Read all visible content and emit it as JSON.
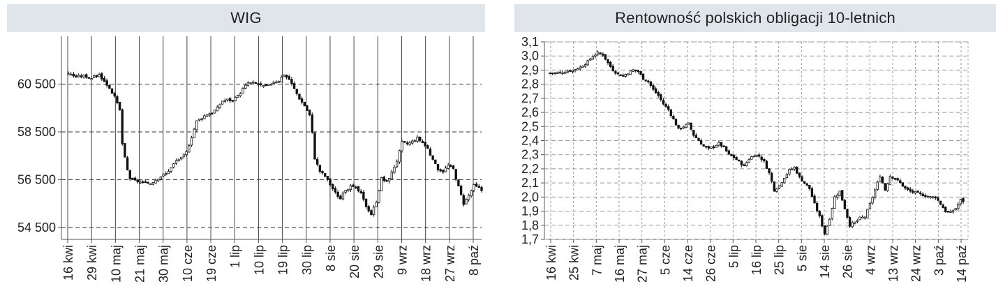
{
  "chart_data": [
    {
      "type": "candlestick",
      "title": "WIG",
      "ylim": [
        54000,
        62500
      ],
      "yticks": [
        54500,
        56500,
        58500,
        60500
      ],
      "ytick_labels": [
        "54 500",
        "56 500",
        "58 500",
        "60 500"
      ],
      "xtick_labels": [
        "16 kwi",
        "29 kwi",
        "10 maj",
        "21 maj",
        "30 maj",
        "10 cze",
        "19 cze",
        "1 lip",
        "10 lip",
        "19 lip",
        "30 lip",
        "8 sie",
        "20 sie",
        "29 sie",
        "9 wrz",
        "18 wrz",
        "27 wrz",
        "8 paź"
      ],
      "grid": {
        "vertical": "solid",
        "horizontal": "dashed"
      },
      "close_path": [
        [
          0,
          60950
        ],
        [
          3,
          60800
        ],
        [
          6,
          60850
        ],
        [
          9,
          60750
        ],
        [
          12,
          60900
        ],
        [
          14,
          60600
        ],
        [
          16,
          60350
        ],
        [
          18,
          59950
        ],
        [
          20,
          59400
        ],
        [
          21,
          58000
        ],
        [
          22,
          57400
        ],
        [
          23,
          56900
        ],
        [
          24,
          56550
        ],
        [
          26,
          56450
        ],
        [
          28,
          56400
        ],
        [
          30,
          56350
        ],
        [
          32,
          56350
        ],
        [
          34,
          56500
        ],
        [
          36,
          56650
        ],
        [
          38,
          56750
        ],
        [
          40,
          57000
        ],
        [
          42,
          57300
        ],
        [
          44,
          57400
        ],
        [
          46,
          57650
        ],
        [
          48,
          58300
        ],
        [
          50,
          58950
        ],
        [
          52,
          59100
        ],
        [
          54,
          59250
        ],
        [
          56,
          59300
        ],
        [
          58,
          59500
        ],
        [
          60,
          59800
        ],
        [
          62,
          59850
        ],
        [
          64,
          59800
        ],
        [
          66,
          60000
        ],
        [
          68,
          60300
        ],
        [
          70,
          60550
        ],
        [
          72,
          60550
        ],
        [
          74,
          60500
        ],
        [
          76,
          60400
        ],
        [
          78,
          60450
        ],
        [
          80,
          60600
        ],
        [
          82,
          60650
        ],
        [
          84,
          60900
        ],
        [
          86,
          60700
        ],
        [
          88,
          60300
        ],
        [
          90,
          59900
        ],
        [
          92,
          59600
        ],
        [
          94,
          59200
        ],
        [
          95,
          58450
        ],
        [
          96,
          57400
        ],
        [
          98,
          56850
        ],
        [
          100,
          56650
        ],
        [
          102,
          56300
        ],
        [
          104,
          55950
        ],
        [
          106,
          55700
        ],
        [
          108,
          56100
        ],
        [
          110,
          56200
        ],
        [
          112,
          56150
        ],
        [
          114,
          55900
        ],
        [
          116,
          55400
        ],
        [
          118,
          55050
        ],
        [
          120,
          55600
        ],
        [
          122,
          56550
        ],
        [
          124,
          56400
        ],
        [
          126,
          56800
        ],
        [
          128,
          57300
        ],
        [
          130,
          58050
        ],
        [
          132,
          58000
        ],
        [
          134,
          58100
        ],
        [
          136,
          58250
        ],
        [
          138,
          58050
        ],
        [
          140,
          57800
        ],
        [
          142,
          57300
        ],
        [
          144,
          56950
        ],
        [
          146,
          56850
        ],
        [
          148,
          57100
        ],
        [
          150,
          56950
        ],
        [
          152,
          56200
        ],
        [
          154,
          55500
        ],
        [
          156,
          55850
        ],
        [
          158,
          56250
        ],
        [
          160,
          56150
        ],
        [
          161,
          56050
        ]
      ]
    },
    {
      "type": "candlestick",
      "title": "Rentowność polskich obligacji 10-letnich",
      "ylim": [
        1.7,
        3.1
      ],
      "yticks": [
        1.7,
        1.8,
        1.9,
        2.0,
        2.1,
        2.2,
        2.3,
        2.4,
        2.5,
        2.6,
        2.7,
        2.8,
        2.9,
        3.0,
        3.1
      ],
      "ytick_labels": [
        "1,7",
        "1,8",
        "1,9",
        "2,0",
        "2,1",
        "2,2",
        "2,3",
        "2,4",
        "2,5",
        "2,6",
        "2,7",
        "2,8",
        "2,9",
        "3,0",
        "3,1"
      ],
      "xtick_labels": [
        "16 kwi",
        "25 kwi",
        "7 maj",
        "16 maj",
        "27 maj",
        "5 cze",
        "14 cze",
        "26 cze",
        "5 lip",
        "16 lip",
        "25 lip",
        "5 sie",
        "14 sie",
        "26 sie",
        "4 wrz",
        "13 wrz",
        "24 wrz",
        "3 paź",
        "14 paź"
      ],
      "grid": {
        "vertical": "dashed",
        "horizontal": "dashed"
      },
      "close_path": [
        [
          0,
          2.88
        ],
        [
          3,
          2.88
        ],
        [
          6,
          2.89
        ],
        [
          9,
          2.9
        ],
        [
          12,
          2.92
        ],
        [
          15,
          2.96
        ],
        [
          17,
          3.0
        ],
        [
          19,
          3.02
        ],
        [
          21,
          3.01
        ],
        [
          23,
          2.95
        ],
        [
          25,
          2.9
        ],
        [
          27,
          2.87
        ],
        [
          29,
          2.86
        ],
        [
          31,
          2.88
        ],
        [
          33,
          2.9
        ],
        [
          35,
          2.89
        ],
        [
          37,
          2.84
        ],
        [
          39,
          2.82
        ],
        [
          41,
          2.76
        ],
        [
          43,
          2.72
        ],
        [
          45,
          2.66
        ],
        [
          47,
          2.62
        ],
        [
          49,
          2.55
        ],
        [
          51,
          2.48
        ],
        [
          53,
          2.5
        ],
        [
          55,
          2.52
        ],
        [
          57,
          2.44
        ],
        [
          59,
          2.4
        ],
        [
          61,
          2.36
        ],
        [
          63,
          2.34
        ],
        [
          65,
          2.36
        ],
        [
          67,
          2.38
        ],
        [
          69,
          2.35
        ],
        [
          71,
          2.3
        ],
        [
          73,
          2.28
        ],
        [
          75,
          2.25
        ],
        [
          77,
          2.22
        ],
        [
          79,
          2.27
        ],
        [
          81,
          2.3
        ],
        [
          83,
          2.29
        ],
        [
          85,
          2.25
        ],
        [
          87,
          2.17
        ],
        [
          89,
          2.05
        ],
        [
          91,
          2.08
        ],
        [
          93,
          2.14
        ],
        [
          95,
          2.19
        ],
        [
          97,
          2.21
        ],
        [
          99,
          2.14
        ],
        [
          101,
          2.1
        ],
        [
          103,
          2.06
        ],
        [
          105,
          1.95
        ],
        [
          107,
          1.86
        ],
        [
          109,
          1.74
        ],
        [
          111,
          1.85
        ],
        [
          113,
          2.0
        ],
        [
          115,
          2.04
        ],
        [
          117,
          1.92
        ],
        [
          119,
          1.8
        ],
        [
          121,
          1.82
        ],
        [
          123,
          1.85
        ],
        [
          125,
          1.86
        ],
        [
          127,
          1.95
        ],
        [
          129,
          2.05
        ],
        [
          131,
          2.15
        ],
        [
          133,
          2.05
        ],
        [
          135,
          2.15
        ],
        [
          137,
          2.13
        ],
        [
          139,
          2.1
        ],
        [
          141,
          2.06
        ],
        [
          143,
          2.04
        ],
        [
          145,
          2.03
        ],
        [
          147,
          2.02
        ],
        [
          149,
          2.01
        ],
        [
          151,
          2.0
        ],
        [
          153,
          2.0
        ],
        [
          155,
          1.95
        ],
        [
          157,
          1.9
        ],
        [
          159,
          1.89
        ],
        [
          161,
          1.92
        ],
        [
          163,
          1.98
        ],
        [
          164,
          1.97
        ]
      ]
    }
  ]
}
